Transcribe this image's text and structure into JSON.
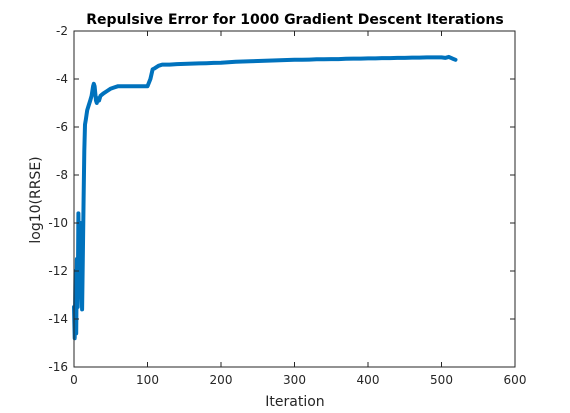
{
  "chart_data": {
    "type": "line",
    "title": "Repulsive Error for 1000 Gradient Descent Iterations",
    "xlabel": "Iteration",
    "ylabel": "log10(RRSE)",
    "xlim": [
      0,
      600
    ],
    "ylim": [
      -16,
      -2
    ],
    "xticks": [
      0,
      100,
      200,
      300,
      400,
      500,
      600
    ],
    "yticks": [
      -16,
      -14,
      -12,
      -10,
      -8,
      -6,
      -4,
      -2
    ],
    "grid": false,
    "box": true,
    "line_color": "#0072BD",
    "series": [
      {
        "x": [
          0,
          1,
          2,
          3,
          4,
          5,
          6,
          7,
          8,
          9,
          10,
          11,
          12,
          13,
          14,
          15,
          16,
          17,
          18,
          20,
          22,
          24,
          26,
          27,
          28,
          29,
          30,
          31,
          32,
          34,
          36,
          40,
          45,
          50,
          55,
          60,
          70,
          80,
          90,
          100,
          104,
          107,
          110,
          115,
          120,
          130,
          140,
          150,
          160,
          170,
          180,
          190,
          200,
          210,
          220,
          230,
          240,
          250,
          260,
          270,
          280,
          290,
          300,
          310,
          320,
          330,
          340,
          350,
          360,
          370,
          380,
          390,
          400,
          410,
          420,
          430,
          440,
          450,
          460,
          470,
          480,
          490,
          500,
          505,
          510,
          515,
          519
        ],
        "y": [
          -13.5,
          -14.8,
          -12.0,
          -14.6,
          -11.5,
          -13.5,
          -9.6,
          -12.5,
          -13.0,
          -10.0,
          -12.5,
          -13.6,
          -11.5,
          -9.0,
          -7.0,
          -5.9,
          -5.7,
          -5.5,
          -5.3,
          -5.1,
          -4.9,
          -4.7,
          -4.3,
          -4.2,
          -4.3,
          -4.6,
          -4.9,
          -5.0,
          -4.8,
          -4.9,
          -4.7,
          -4.6,
          -4.5,
          -4.4,
          -4.35,
          -4.3,
          -4.3,
          -4.3,
          -4.3,
          -4.3,
          -4.0,
          -3.6,
          -3.55,
          -3.45,
          -3.4,
          -3.4,
          -3.38,
          -3.37,
          -3.36,
          -3.35,
          -3.34,
          -3.33,
          -3.32,
          -3.3,
          -3.28,
          -3.27,
          -3.26,
          -3.25,
          -3.24,
          -3.23,
          -3.22,
          -3.21,
          -3.2,
          -3.2,
          -3.19,
          -3.18,
          -3.18,
          -3.17,
          -3.17,
          -3.16,
          -3.15,
          -3.15,
          -3.14,
          -3.14,
          -3.13,
          -3.13,
          -3.12,
          -3.12,
          -3.11,
          -3.11,
          -3.1,
          -3.1,
          -3.1,
          -3.12,
          -3.08,
          -3.15,
          -3.2
        ]
      }
    ]
  }
}
